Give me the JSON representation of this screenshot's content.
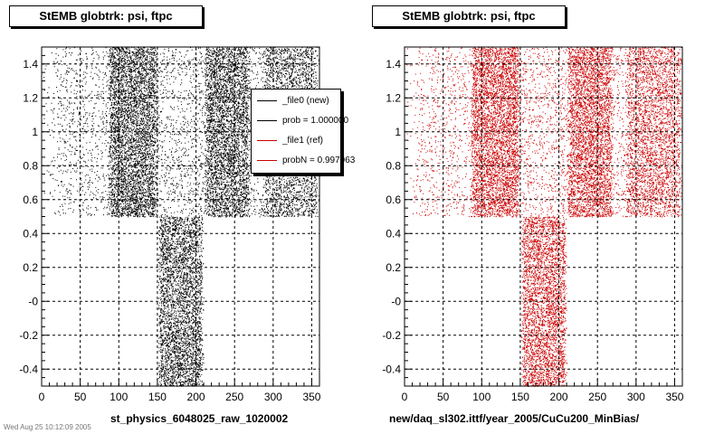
{
  "titles": {
    "left": "StEMB globtrk: psi, ftpc",
    "right": "StEMB globtrk: psi, ftpc"
  },
  "captions": {
    "left": "st_physics_6048025_raw_1020002",
    "right": "new/daq_sl302.ittf/year_2005/CuCu200_MinBias/"
  },
  "legend": {
    "entries": [
      {
        "label": "_file0 (new)",
        "color": "#000000"
      },
      {
        "label": "prob = 1.000000",
        "color": "#000000"
      },
      {
        "label": "_file1 (ref)",
        "color": "#cc0000"
      },
      {
        "label": "probN = 0.997963",
        "color": "#cc0000"
      }
    ]
  },
  "stamp": "Wed Aug 25 10:12:09 2005",
  "chart_data": [
    {
      "type": "scatter",
      "title": "StEMB globtrk: psi, ftpc",
      "xlabel": "st_physics_6048025_raw_1020002",
      "ylabel": "",
      "xlim": [
        0,
        360
      ],
      "ylim": [
        -0.5,
        1.5
      ],
      "x_ticks": [
        0,
        50,
        100,
        150,
        200,
        250,
        300,
        350
      ],
      "y_ticks": [
        -0.4,
        -0.2,
        0,
        0.2,
        0.4,
        0.6,
        0.8,
        1,
        1.2,
        1.4
      ],
      "y_tick_labels": [
        "-0.4",
        "-0.2",
        "-0",
        "0.2",
        "0.4",
        "0.6",
        "0.8",
        "1",
        "1.2",
        "1.4"
      ],
      "grid": true,
      "marker_color": "#000000",
      "bands": [
        {
          "x_range": [
            0,
            360
          ],
          "y_range": [
            0.5,
            1.5
          ],
          "density": 0.15
        },
        {
          "x_range": [
            85,
            150
          ],
          "y_range": [
            0.5,
            1.5
          ],
          "density": 1.0
        },
        {
          "x_range": [
            150,
            210
          ],
          "y_range": [
            0.5,
            1.5
          ],
          "density": 0.05
        },
        {
          "x_range": [
            210,
            270
          ],
          "y_range": [
            0.5,
            1.5
          ],
          "density": 0.95
        },
        {
          "x_range": [
            285,
            360
          ],
          "y_range": [
            0.5,
            1.5
          ],
          "density": 0.6
        },
        {
          "x_range": [
            150,
            210
          ],
          "y_range": [
            -0.5,
            0.5
          ],
          "density": 1.0
        }
      ]
    },
    {
      "type": "scatter",
      "title": "StEMB globtrk: psi, ftpc",
      "xlabel": "new/daq_sl302.ittf/year_2005/CuCu200_MinBias/",
      "ylabel": "",
      "xlim": [
        0,
        360
      ],
      "ylim": [
        -0.5,
        1.5
      ],
      "x_ticks": [
        0,
        50,
        100,
        150,
        200,
        250,
        300,
        350
      ],
      "y_ticks": [
        -0.4,
        -0.2,
        0,
        0.2,
        0.4,
        0.6,
        0.8,
        1,
        1.2,
        1.4
      ],
      "y_tick_labels": [
        "-0.4",
        "-0.2",
        "-0",
        "0.2",
        "0.4",
        "0.6",
        "0.8",
        "1",
        "1.2",
        "1.4"
      ],
      "grid": true,
      "marker_color": "#cc0000",
      "bands": [
        {
          "x_range": [
            0,
            360
          ],
          "y_range": [
            0.5,
            1.5
          ],
          "density": 0.15
        },
        {
          "x_range": [
            85,
            150
          ],
          "y_range": [
            0.5,
            1.5
          ],
          "density": 1.0
        },
        {
          "x_range": [
            150,
            210
          ],
          "y_range": [
            0.5,
            1.5
          ],
          "density": 0.05
        },
        {
          "x_range": [
            210,
            270
          ],
          "y_range": [
            0.5,
            1.5
          ],
          "density": 0.95
        },
        {
          "x_range": [
            285,
            360
          ],
          "y_range": [
            0.5,
            1.5
          ],
          "density": 0.6
        },
        {
          "x_range": [
            150,
            210
          ],
          "y_range": [
            -0.5,
            0.5
          ],
          "density": 1.0
        }
      ]
    }
  ]
}
